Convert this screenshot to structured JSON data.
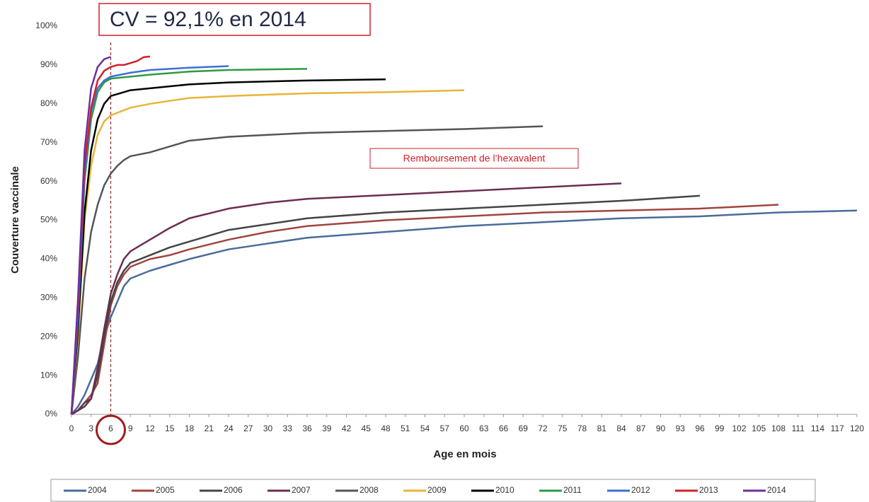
{
  "chart_data": {
    "type": "line",
    "title": "CV = 92,1% en 2014",
    "annotation": "Remboursement de l’hexavalent",
    "x_label": "Age en mois",
    "y_label": "Couverture vaccinale",
    "reference_line_x": 6,
    "xlim": [
      0,
      120
    ],
    "xticks": [
      0,
      3,
      6,
      9,
      12,
      15,
      18,
      21,
      24,
      27,
      30,
      33,
      36,
      39,
      42,
      45,
      48,
      51,
      54,
      57,
      60,
      63,
      66,
      69,
      72,
      75,
      78,
      81,
      84,
      87,
      90,
      93,
      96,
      99,
      102,
      105,
      108,
      111,
      114,
      117,
      120
    ],
    "ylim": [
      0,
      100
    ],
    "yticks": [
      {
        "value": 0,
        "label": "0%"
      },
      {
        "value": 10,
        "label": "10%"
      },
      {
        "value": 20,
        "label": "20%"
      },
      {
        "value": 30,
        "label": "30%"
      },
      {
        "value": 40,
        "label": "40%"
      },
      {
        "value": 50,
        "label": "50%"
      },
      {
        "value": 60,
        "label": "60%"
      },
      {
        "value": 70,
        "label": "70%"
      },
      {
        "value": 80,
        "label": "80%"
      },
      {
        "value": 90,
        "label": "90%"
      },
      {
        "value": 100,
        "label": "100%"
      }
    ],
    "legend": "bottom",
    "series": [
      {
        "name": "2004",
        "color": "#4a6b9a",
        "x": [
          0,
          1,
          2,
          3,
          4,
          5,
          6,
          7,
          8,
          9,
          12,
          15,
          18,
          24,
          30,
          36,
          48,
          60,
          72,
          84,
          96,
          108,
          120
        ],
        "values": [
          0,
          2,
          5,
          9,
          13,
          20,
          25,
          29,
          33,
          35,
          37,
          38.5,
          40,
          42.5,
          44,
          45.5,
          47,
          48.5,
          49.5,
          50.5,
          51,
          52,
          52.5
        ]
      },
      {
        "name": "2005",
        "color": "#a0453f",
        "x": [
          0,
          1,
          2,
          3,
          4,
          5,
          6,
          7,
          8,
          9,
          12,
          15,
          18,
          24,
          30,
          36,
          48,
          60,
          72,
          84,
          96,
          108
        ],
        "values": [
          0,
          1,
          3,
          5,
          8,
          18,
          28,
          33,
          36,
          38,
          40,
          41,
          42.5,
          45,
          47,
          48.5,
          50,
          51,
          52,
          52.5,
          53,
          54
        ]
      },
      {
        "name": "2006",
        "color": "#454545",
        "x": [
          0,
          1,
          2,
          3,
          4,
          5,
          6,
          7,
          8,
          9,
          12,
          15,
          18,
          24,
          30,
          36,
          48,
          60,
          72,
          84,
          96
        ],
        "values": [
          0,
          1,
          2,
          4,
          10,
          20,
          29,
          34,
          37,
          39,
          41,
          43,
          44.5,
          47.5,
          49,
          50.5,
          52,
          53,
          54,
          55,
          56.3
        ]
      },
      {
        "name": "2007",
        "color": "#6b2d4f",
        "x": [
          0,
          1,
          2,
          3,
          4,
          5,
          6,
          7,
          8,
          9,
          12,
          15,
          18,
          24,
          30,
          36,
          48,
          60,
          72,
          84
        ],
        "values": [
          0,
          1,
          3,
          4,
          12,
          22,
          31,
          36,
          40,
          42,
          45,
          48,
          50.5,
          53,
          54.5,
          55.5,
          56.5,
          57.5,
          58.5,
          59.5
        ]
      },
      {
        "name": "2008",
        "color": "#555555",
        "x": [
          0,
          1,
          2,
          3,
          4,
          5,
          6,
          7,
          8,
          9,
          12,
          15,
          18,
          24,
          30,
          36,
          48,
          60,
          72
        ],
        "values": [
          0,
          15,
          35,
          47,
          54,
          59,
          62,
          64,
          65.5,
          66.5,
          67.5,
          69,
          70.5,
          71.5,
          72,
          72.5,
          73,
          73.5,
          74.2
        ]
      },
      {
        "name": "2009",
        "color": "#e8b43a",
        "x": [
          0,
          1,
          2,
          3,
          4,
          5,
          6,
          9,
          12,
          18,
          24,
          36,
          48,
          60
        ],
        "values": [
          0,
          20,
          50,
          64,
          72,
          75.5,
          77,
          79,
          80,
          81.5,
          82,
          82.7,
          83,
          83.5
        ]
      },
      {
        "name": "2010",
        "color": "#000000",
        "x": [
          0,
          1,
          2,
          3,
          4,
          5,
          6,
          9,
          12,
          18,
          24,
          36,
          48
        ],
        "values": [
          0,
          22,
          52,
          68,
          76,
          80,
          82,
          83.5,
          84,
          85,
          85.5,
          86,
          86.3
        ]
      },
      {
        "name": "2011",
        "color": "#2e9a44",
        "x": [
          0,
          1,
          2,
          3,
          4,
          5,
          6,
          9,
          12,
          18,
          24,
          36
        ],
        "values": [
          0,
          25,
          60,
          76,
          83,
          85.5,
          86.5,
          87,
          87.5,
          88.3,
          88.7,
          89
        ]
      },
      {
        "name": "2012",
        "color": "#3f6fd4",
        "x": [
          0,
          1,
          2,
          3,
          4,
          5,
          6,
          9,
          12,
          18,
          24
        ],
        "values": [
          0,
          25,
          62,
          78,
          84,
          86,
          87,
          88,
          88.7,
          89.3,
          89.7
        ]
      },
      {
        "name": "2013",
        "color": "#d0202a",
        "x": [
          0,
          1,
          2,
          3,
          4,
          5,
          6,
          7,
          8,
          9,
          10,
          11,
          12
        ],
        "values": [
          0,
          28,
          64,
          79,
          86,
          88.5,
          89.5,
          90,
          90,
          90.5,
          91,
          92,
          92.2
        ]
      },
      {
        "name": "2014",
        "color": "#6b2fa0",
        "x": [
          0,
          1,
          2,
          3,
          4,
          5,
          6
        ],
        "values": [
          0,
          30,
          68,
          84,
          89.5,
          91.5,
          92.1
        ]
      }
    ]
  }
}
